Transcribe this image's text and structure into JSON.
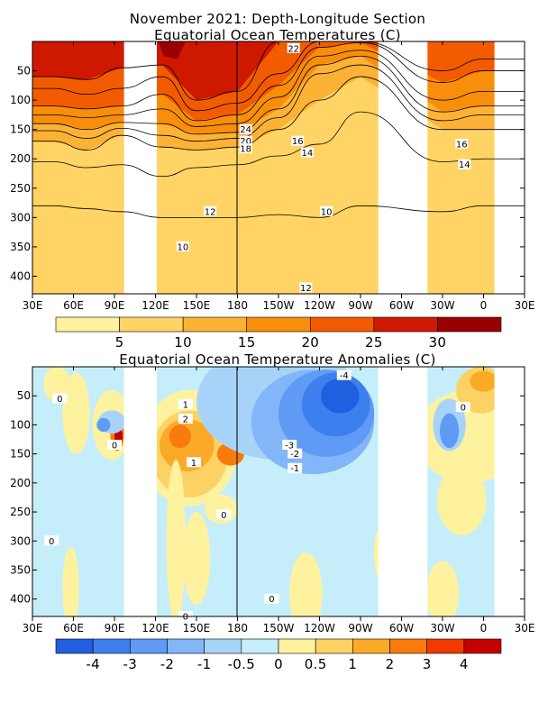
{
  "titles": {
    "line1": "November 2021: Depth-Longitude Section",
    "line2": "Equatorial Ocean Temperatures (C)",
    "line3": "Equatorial Ocean Temperature Anomalies (C)"
  },
  "chart_data": [
    {
      "type": "heatmap",
      "title": "Equatorial Ocean Temperatures (C)",
      "x_axis": {
        "ticks": [
          "30E",
          "60E",
          "90E",
          "120E",
          "150E",
          "180",
          "150W",
          "120W",
          "90W",
          "60W",
          "30W",
          "0",
          "30E"
        ],
        "range_deg_east": [
          30,
          390
        ]
      },
      "y_axis": {
        "ticks": [
          50,
          100,
          150,
          200,
          250,
          300,
          350,
          400
        ],
        "range": [
          0,
          430
        ],
        "inverted": true
      },
      "colorbar": {
        "labels": [
          "5",
          "10",
          "15",
          "20",
          "25",
          "30"
        ],
        "colors": [
          "#fff29e",
          "#ffd464",
          "#fcb235",
          "#f98e0a",
          "#f35b00",
          "#cf1800",
          "#9a0000"
        ]
      },
      "contour_labels": [
        "22",
        "24",
        "20",
        "18",
        "16",
        "14",
        "12",
        "10",
        "12",
        "10",
        "16",
        "14"
      ],
      "land_gaps_deg_east": [
        [
          97,
          121
        ],
        [
          283,
          319
        ],
        [
          368,
          390
        ]
      ],
      "profile_columns": [
        {
          "lon": 45,
          "z": [
            0,
            60,
            80,
            110,
            125,
            140,
            152,
            170,
            205,
            280,
            470
          ],
          "v": [
            29.5,
            29,
            27,
            25,
            22,
            20,
            18,
            16,
            14,
            12,
            10
          ]
        },
        {
          "lon": 70,
          "z": [
            0,
            65,
            90,
            115,
            130,
            150,
            165,
            185,
            215,
            285,
            470
          ],
          "v": [
            29.5,
            29,
            27,
            25,
            22,
            20,
            18,
            16,
            14,
            12,
            10
          ]
        },
        {
          "lon": 95,
          "z": [
            0,
            45,
            80,
            110,
            125,
            138,
            148,
            160,
            210,
            290,
            470
          ],
          "v": [
            29.5,
            29,
            27,
            25,
            22,
            20,
            18,
            16,
            14,
            12,
            10
          ]
        },
        {
          "lon": 125,
          "z": [
            0,
            40,
            60,
            90,
            115,
            140,
            160,
            180,
            230,
            300,
            470
          ],
          "v": [
            29.5,
            29,
            27,
            25,
            22,
            20,
            18,
            16,
            14,
            12,
            10
          ]
        },
        {
          "lon": 150,
          "z": [
            0,
            100,
            118,
            135,
            145,
            158,
            170,
            185,
            215,
            300,
            470
          ],
          "v": [
            30,
            29,
            27,
            25,
            22,
            20,
            18,
            16,
            14,
            12,
            10
          ]
        },
        {
          "lon": 180,
          "z": [
            0,
            85,
            105,
            125,
            140,
            155,
            165,
            180,
            210,
            300,
            470
          ],
          "v": [
            29.5,
            29,
            27,
            25,
            22,
            20,
            18,
            16,
            14,
            12,
            10
          ]
        },
        {
          "lon": 210,
          "z": [
            0,
            30,
            55,
            75,
            95,
            115,
            130,
            150,
            195,
            295,
            470
          ],
          "v": [
            29,
            28,
            27,
            25,
            22,
            20,
            18,
            16,
            14,
            12,
            10
          ]
        },
        {
          "lon": 240,
          "z": [
            0,
            1,
            3,
            10,
            25,
            40,
            55,
            100,
            175,
            300,
            470
          ],
          "v": [
            27,
            27,
            26,
            25,
            22,
            20,
            18,
            16,
            14,
            12,
            10
          ]
        },
        {
          "lon": 270,
          "z": [
            0,
            1,
            2,
            5,
            15,
            25,
            40,
            60,
            120,
            280,
            470
          ],
          "v": [
            26,
            26,
            25,
            24,
            22,
            20,
            18,
            16,
            14,
            12,
            10
          ]
        },
        {
          "lon": 330,
          "z": [
            0,
            25,
            50,
            70,
            100,
            120,
            135,
            150,
            205,
            290,
            470
          ],
          "v": [
            29,
            28,
            27,
            25,
            22,
            20,
            18,
            16,
            14,
            12,
            10
          ]
        },
        {
          "lon": 360,
          "z": [
            0,
            10,
            30,
            50,
            85,
            110,
            125,
            150,
            200,
            280,
            470
          ],
          "v": [
            28.5,
            28,
            27,
            25,
            22,
            20,
            18,
            16,
            14,
            12,
            10
          ]
        }
      ]
    },
    {
      "type": "heatmap",
      "title": "Equatorial Ocean Temperature Anomalies (C)",
      "x_axis": {
        "ticks": [
          "30E",
          "60E",
          "90E",
          "120E",
          "150E",
          "180",
          "150W",
          "120W",
          "90W",
          "60W",
          "30W",
          "0",
          "30E"
        ],
        "range_deg_east": [
          30,
          390
        ]
      },
      "y_axis": {
        "ticks": [
          50,
          100,
          150,
          200,
          250,
          300,
          350,
          400
        ],
        "range": [
          0,
          430
        ],
        "inverted": true
      },
      "colorbar": {
        "labels": [
          "-4",
          "-3",
          "-2",
          "-1",
          "-0.5",
          "0",
          "0.5",
          "1",
          "2",
          "3",
          "4"
        ],
        "colors": [
          "#1f5fe0",
          "#3d7fef",
          "#5f9bf5",
          "#82b6f8",
          "#a8d3f9",
          "#c5eefa",
          "#fff29e",
          "#fdd264",
          "#fbaa28",
          "#f97b0c",
          "#f03a00",
          "#c40000"
        ]
      },
      "contour_labels": [
        "-4",
        "0",
        "1",
        "2",
        "0",
        "1",
        "-3",
        "-2",
        "-1",
        "0",
        "0",
        "0",
        "0",
        "0"
      ],
      "land_gaps_deg_east": [
        [
          97,
          121
        ],
        [
          283,
          319
        ],
        [
          368,
          390
        ]
      ]
    }
  ]
}
